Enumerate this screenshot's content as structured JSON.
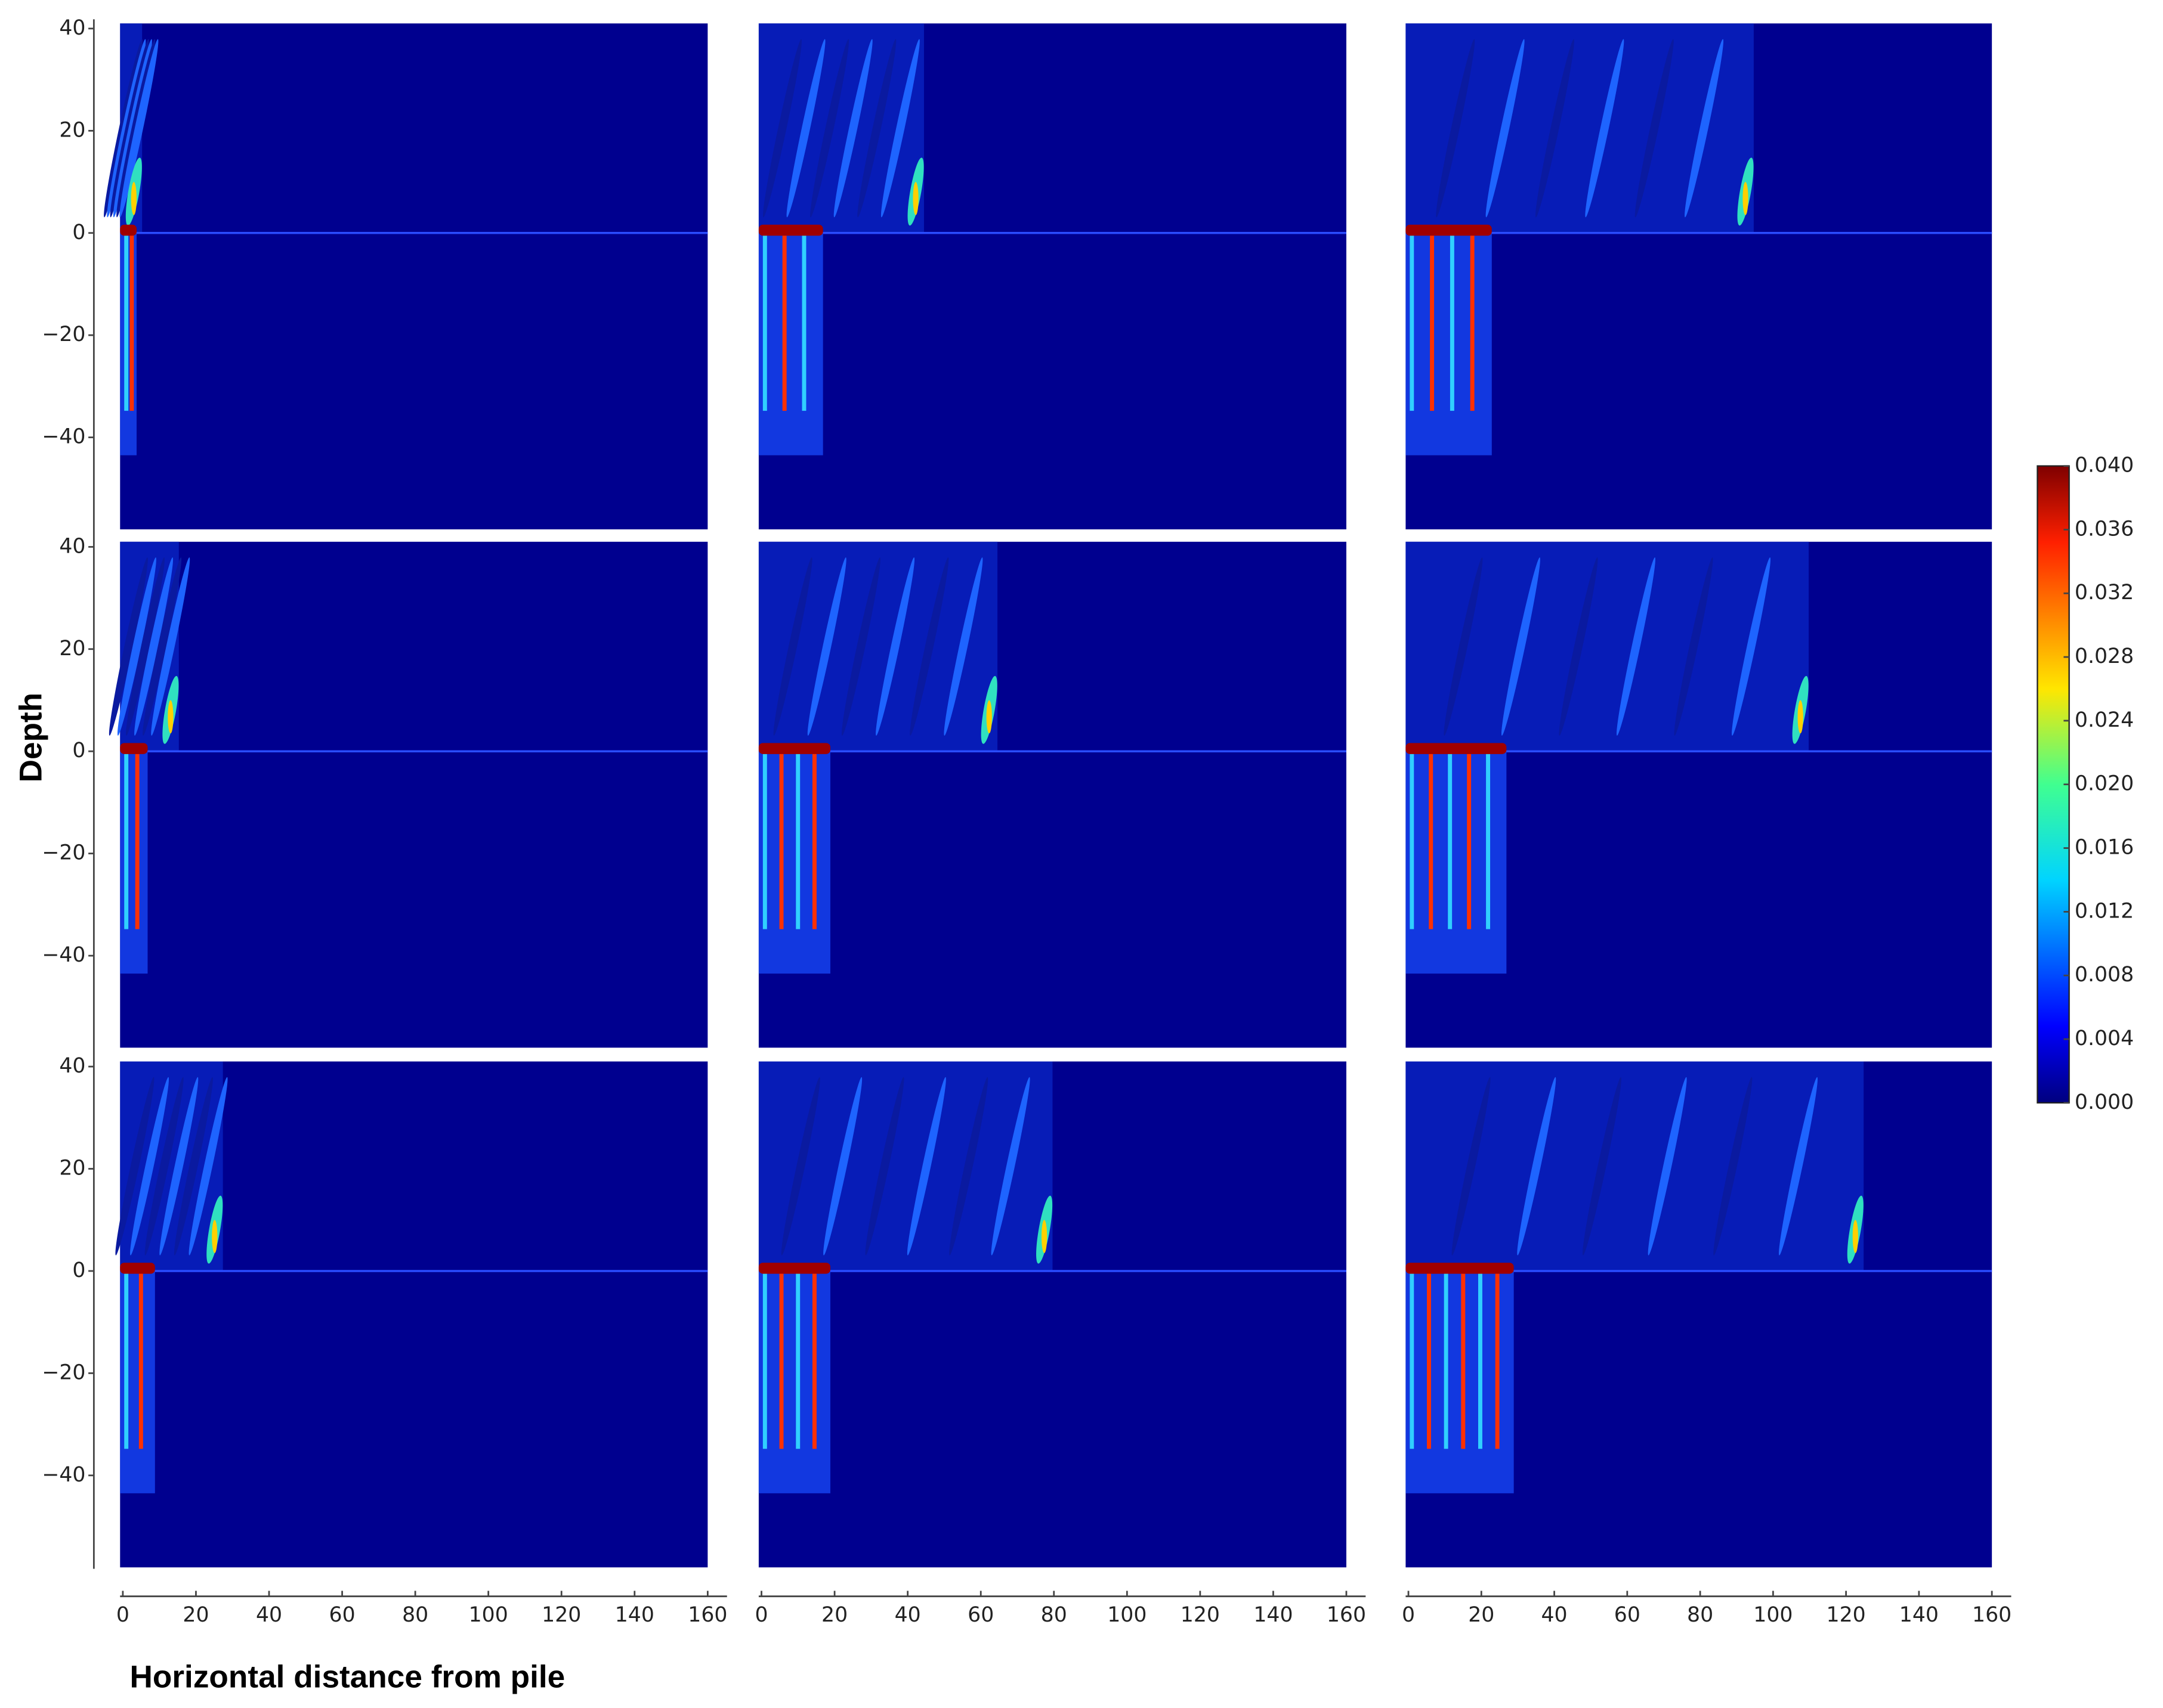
{
  "chart_data": {
    "type": "contour",
    "x_label": "Horizontal distance from pile",
    "y_label": "Depth",
    "xlim": [
      0,
      160
    ],
    "xticks": [
      0,
      20,
      40,
      60,
      80,
      100,
      120,
      140,
      160
    ],
    "ylim": [
      -58,
      41
    ],
    "yticks": [
      40,
      20,
      0,
      {
        "value": -20,
        "label": "−20"
      },
      {
        "value": -40,
        "label": "−40"
      }
    ],
    "colorbar": {
      "lim": [
        0,
        0.04
      ],
      "ticks": [
        {
          "value": 0,
          "label": "0.000"
        },
        {
          "value": 0.004,
          "label": "0.004"
        },
        {
          "value": 0.008,
          "label": "0.008"
        },
        {
          "value": 0.012,
          "label": "0.012"
        },
        {
          "value": 0.016,
          "label": "0.016"
        },
        {
          "value": 0.02,
          "label": "0.020"
        },
        {
          "value": 0.024,
          "label": "0.024"
        },
        {
          "value": 0.028,
          "label": "0.028"
        },
        {
          "value": 0.032,
          "label": "0.032"
        },
        {
          "value": 0.036,
          "label": "0.036"
        },
        {
          "value": 0.04,
          "label": "0.040"
        }
      ]
    }
  }
}
